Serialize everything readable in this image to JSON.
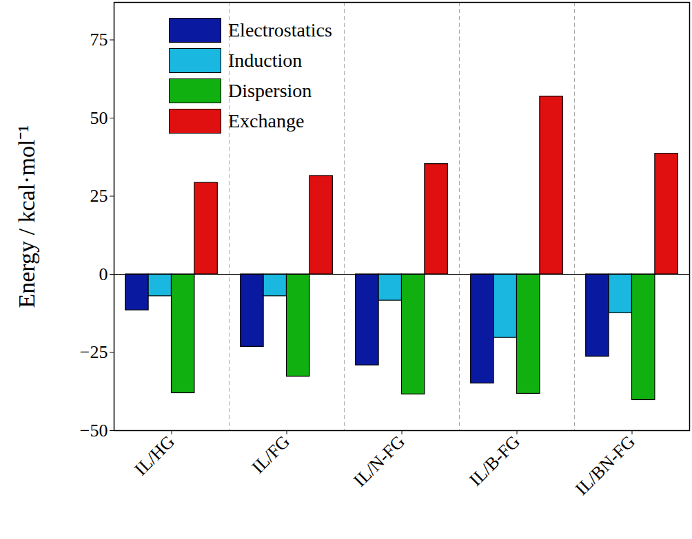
{
  "chart_data": {
    "type": "bar",
    "y_label": "Energy / kcal·mol⁻¹",
    "categories": [
      "IL/HG",
      "IL/FG",
      "IL/N-FG",
      "IL/B-FG",
      "IL/BN-FG"
    ],
    "series": [
      {
        "name": "Electrostatics",
        "color": "#0a1aa0",
        "values": [
          -11.5,
          -23.2,
          -29.1,
          -34.9,
          -26.3
        ]
      },
      {
        "name": "Induction",
        "color": "#1ab8e0",
        "values": [
          -7.0,
          -7.0,
          -8.4,
          -20.3,
          -12.4
        ]
      },
      {
        "name": "Dispersion",
        "color": "#10b010",
        "values": [
          -38.0,
          -32.7,
          -38.4,
          -38.2,
          -40.2
        ]
      },
      {
        "name": "Exchange",
        "color": "#e01010",
        "values": [
          29.3,
          31.5,
          35.3,
          56.9,
          38.6
        ]
      }
    ],
    "ylim": [
      -50,
      87
    ],
    "yticks": [
      -50,
      -25,
      0,
      25,
      50,
      75
    ],
    "legend": "top-left"
  }
}
